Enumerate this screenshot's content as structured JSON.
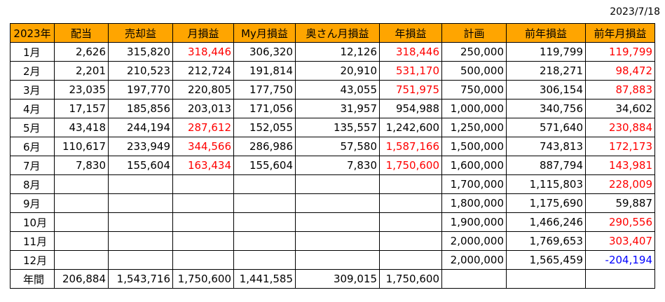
{
  "date": "2023/7/18",
  "colors": {
    "header_bg": "#ffa500",
    "positive_highlight": "#ff0000",
    "negative": "#0000ff"
  },
  "headers": [
    "2023年",
    "配当",
    "売却益",
    "月損益",
    "My月損益",
    "奥さん月損益",
    "年損益",
    "計画",
    "前年損益",
    "前年月損益"
  ],
  "rows": [
    {
      "month": "1月",
      "cells": [
        "2,626",
        "315,820",
        "318,446",
        "306,320",
        "12,126",
        "318,446",
        "250,000",
        "119,799",
        "119,799"
      ],
      "red": [
        false,
        false,
        true,
        false,
        false,
        true,
        false,
        false,
        true
      ]
    },
    {
      "month": "2月",
      "cells": [
        "2,201",
        "210,523",
        "212,724",
        "191,814",
        "20,910",
        "531,170",
        "500,000",
        "218,271",
        "98,472"
      ],
      "red": [
        false,
        false,
        false,
        false,
        false,
        true,
        false,
        false,
        true
      ]
    },
    {
      "month": "3月",
      "cells": [
        "23,035",
        "197,770",
        "220,805",
        "177,750",
        "43,055",
        "751,975",
        "750,000",
        "306,154",
        "87,883"
      ],
      "red": [
        false,
        false,
        false,
        false,
        false,
        true,
        false,
        false,
        true
      ]
    },
    {
      "month": "4月",
      "cells": [
        "17,157",
        "185,856",
        "203,013",
        "171,056",
        "31,957",
        "954,988",
        "1,000,000",
        "340,756",
        "34,602"
      ],
      "red": [
        false,
        false,
        false,
        false,
        false,
        false,
        false,
        false,
        false
      ]
    },
    {
      "month": "5月",
      "cells": [
        "43,418",
        "244,194",
        "287,612",
        "152,055",
        "135,557",
        "1,242,600",
        "1,250,000",
        "571,640",
        "230,884"
      ],
      "red": [
        false,
        false,
        true,
        false,
        false,
        false,
        false,
        false,
        true
      ]
    },
    {
      "month": "6月",
      "cells": [
        "110,617",
        "233,949",
        "344,566",
        "286,986",
        "57,580",
        "1,587,166",
        "1,500,000",
        "743,813",
        "172,173"
      ],
      "red": [
        false,
        false,
        true,
        false,
        false,
        true,
        false,
        false,
        true
      ]
    },
    {
      "month": "7月",
      "cells": [
        "7,830",
        "155,604",
        "163,434",
        "155,604",
        "7,830",
        "1,750,600",
        "1,600,000",
        "887,794",
        "143,981"
      ],
      "red": [
        false,
        false,
        true,
        false,
        false,
        true,
        false,
        false,
        true
      ]
    },
    {
      "month": "8月",
      "cells": [
        "",
        "",
        "",
        "",
        "",
        "",
        "1,700,000",
        "1,115,803",
        "228,009"
      ],
      "red": [
        false,
        false,
        false,
        false,
        false,
        false,
        false,
        false,
        true
      ]
    },
    {
      "month": "9月",
      "cells": [
        "",
        "",
        "",
        "",
        "",
        "",
        "1,800,000",
        "1,175,690",
        "59,887"
      ],
      "red": [
        false,
        false,
        false,
        false,
        false,
        false,
        false,
        false,
        false
      ]
    },
    {
      "month": "10月",
      "cells": [
        "",
        "",
        "",
        "",
        "",
        "",
        "1,900,000",
        "1,466,246",
        "290,556"
      ],
      "red": [
        false,
        false,
        false,
        false,
        false,
        false,
        false,
        false,
        true
      ]
    },
    {
      "month": "11月",
      "cells": [
        "",
        "",
        "",
        "",
        "",
        "",
        "2,000,000",
        "1,769,653",
        "303,407"
      ],
      "red": [
        false,
        false,
        false,
        false,
        false,
        false,
        false,
        false,
        true
      ]
    },
    {
      "month": "12月",
      "cells": [
        "",
        "",
        "",
        "",
        "",
        "",
        "2,000,000",
        "1,565,459",
        "-204,194"
      ],
      "red": [
        false,
        false,
        false,
        false,
        false,
        false,
        false,
        false,
        false
      ],
      "blue_last": true
    }
  ],
  "total": {
    "label": "年間",
    "cells": [
      "206,884",
      "1,543,716",
      "1,750,600",
      "1,441,585",
      "309,015",
      "1,750,600",
      "",
      "",
      ""
    ]
  }
}
